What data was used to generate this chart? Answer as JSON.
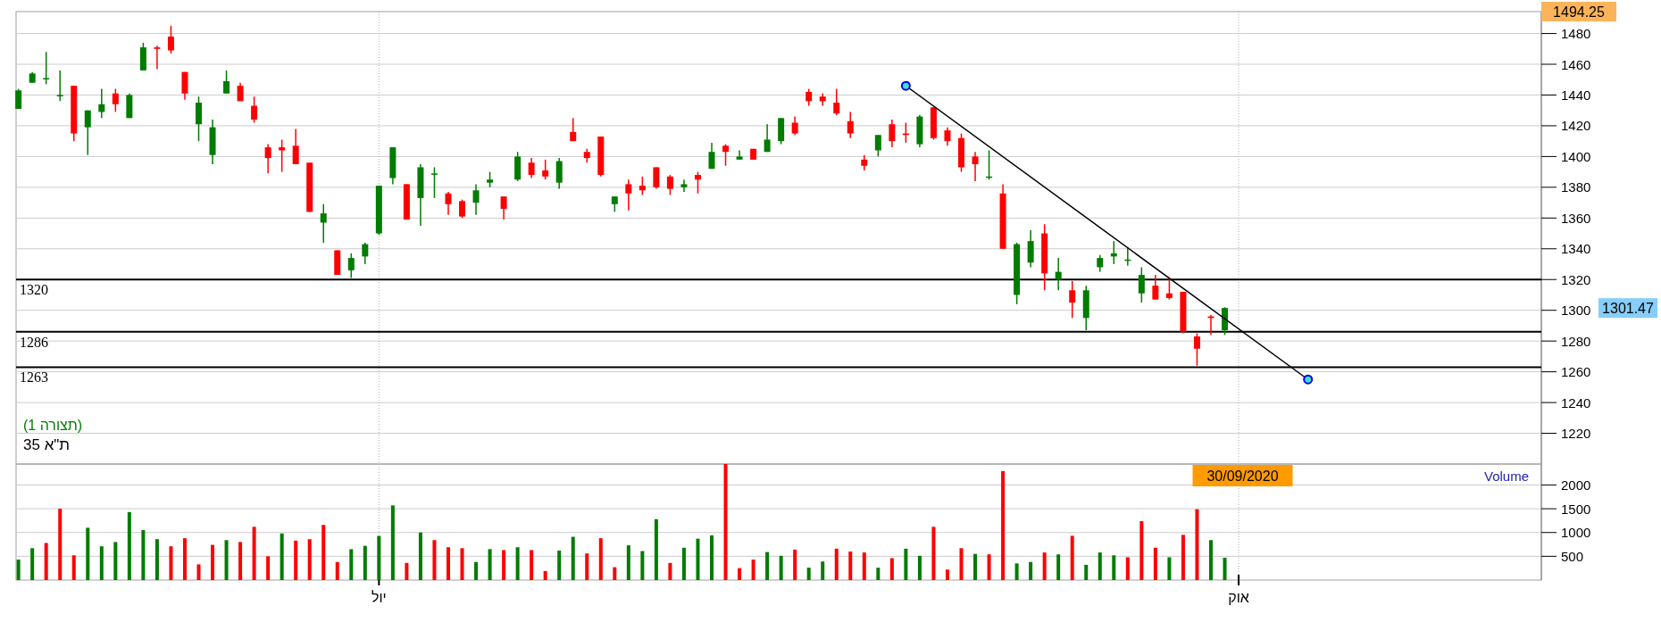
{
  "chart_data": [
    {
      "type": "candlestick",
      "title": "ת\"א 35",
      "subtitle": "(תצורה 1)",
      "categories": [
        null,
        null,
        null,
        null,
        null,
        null,
        null,
        null,
        null,
        null,
        null,
        null,
        null,
        null,
        null,
        null,
        null,
        null,
        null,
        null,
        null,
        null,
        null,
        null,
        null,
        null,
        null,
        null,
        null,
        null,
        null,
        null,
        null,
        null,
        null,
        null,
        null,
        null,
        null,
        null,
        null,
        null,
        null,
        null,
        null,
        null,
        null,
        null,
        null,
        null,
        null,
        null,
        null,
        null,
        null,
        null,
        null,
        null,
        null,
        null,
        null,
        null,
        null,
        null,
        null,
        null,
        null,
        null,
        null,
        null,
        null,
        null,
        null,
        null,
        null,
        null,
        null,
        null,
        null,
        null,
        null,
        null,
        null,
        null,
        null,
        null,
        null,
        null,
        null,
        null,
        null,
        null,
        null,
        null,
        null,
        null,
        null,
        null,
        null,
        null,
        null,
        null,
        null,
        null,
        null,
        null,
        null,
        null,
        null,
        null
      ],
      "ohlc": [
        [
          1431,
          1444,
          1431,
          1443
        ],
        [
          1448,
          1455,
          1448,
          1454
        ],
        [
          1451,
          1468,
          1447,
          1451
        ],
        [
          1440,
          1456,
          1436,
          1440
        ],
        [
          1446,
          1446,
          1410,
          1415
        ],
        [
          1419,
          1430,
          1401,
          1430
        ],
        [
          1429,
          1444,
          1425,
          1434
        ],
        [
          1441,
          1444,
          1429,
          1434
        ],
        [
          1425,
          1441,
          1425,
          1440
        ],
        [
          1456,
          1474,
          1456,
          1471
        ],
        [
          1471,
          1472,
          1457,
          1470
        ],
        [
          1478,
          1485,
          1467,
          1469
        ],
        [
          1455,
          1455,
          1437,
          1441
        ],
        [
          1421,
          1439,
          1410,
          1435
        ],
        [
          1401,
          1424,
          1395,
          1419
        ],
        [
          1441,
          1456,
          1441,
          1449
        ],
        [
          1446,
          1448,
          1436,
          1436
        ],
        [
          1433,
          1439,
          1422,
          1424
        ],
        [
          1406,
          1408,
          1389,
          1399
        ],
        [
          1406,
          1411,
          1390,
          1404
        ],
        [
          1407,
          1418,
          1395,
          1395
        ],
        [
          1396,
          1396,
          1364,
          1364
        ],
        [
          1357,
          1369,
          1344,
          1363
        ],
        [
          1339,
          1339,
          1323,
          1323
        ],
        [
          1326,
          1337,
          1321,
          1334
        ],
        [
          1335,
          1344,
          1330,
          1343
        ],
        [
          1350,
          1381,
          1349,
          1381
        ],
        [
          1386,
          1406,
          1382,
          1406
        ],
        [
          1382,
          1382,
          1359,
          1359
        ],
        [
          1373,
          1395,
          1355,
          1393
        ],
        [
          1389,
          1393,
          1373,
          1389
        ],
        [
          1376,
          1377,
          1362,
          1369
        ],
        [
          1371,
          1372,
          1360,
          1361
        ],
        [
          1370,
          1382,
          1362,
          1378
        ],
        [
          1383,
          1390,
          1380,
          1385
        ],
        [
          1374,
          1374,
          1359,
          1366
        ],
        [
          1385,
          1403,
          1384,
          1400
        ],
        [
          1396,
          1399,
          1386,
          1388
        ],
        [
          1391,
          1398,
          1385,
          1387
        ],
        [
          1383,
          1399,
          1379,
          1397
        ],
        [
          1416,
          1425,
          1410,
          1410
        ],
        [
          1403,
          1405,
          1396,
          1399
        ],
        [
          1413,
          1413,
          1387,
          1388
        ],
        [
          1369,
          1374,
          1364,
          1374
        ],
        [
          1382,
          1385,
          1365,
          1376
        ],
        [
          1381,
          1387,
          1375,
          1378
        ],
        [
          1393,
          1393,
          1379,
          1380
        ],
        [
          1387,
          1388,
          1375,
          1379
        ],
        [
          1380,
          1385,
          1377,
          1382
        ],
        [
          1388,
          1390,
          1376,
          1385
        ],
        [
          1392,
          1409,
          1392,
          1403
        ],
        [
          1407,
          1408,
          1394,
          1403
        ],
        [
          1398,
          1404,
          1398,
          1400
        ],
        [
          1405,
          1405,
          1398,
          1398
        ],
        [
          1403,
          1421,
          1403,
          1411
        ],
        [
          1410,
          1425,
          1408,
          1425
        ],
        [
          1422,
          1426,
          1414,
          1415
        ],
        [
          1442,
          1444,
          1433,
          1436
        ],
        [
          1439,
          1441,
          1433,
          1436
        ],
        [
          1435,
          1444,
          1427,
          1428
        ],
        [
          1423,
          1429,
          1412,
          1415
        ],
        [
          1398,
          1401,
          1391,
          1394
        ],
        [
          1404,
          1414,
          1400,
          1414
        ],
        [
          1421,
          1424,
          1406,
          1410
        ],
        [
          1415,
          1422,
          1409,
          1414
        ],
        [
          1408,
          1427,
          1406,
          1426
        ],
        [
          1432,
          1432,
          1411,
          1412
        ],
        [
          1417,
          1419,
          1407,
          1410
        ],
        [
          1412,
          1415,
          1390,
          1393
        ],
        [
          1400,
          1403,
          1384,
          1395
        ],
        [
          1387,
          1404,
          1385,
          1387
        ],
        [
          1376,
          1382,
          1340,
          1340
        ],
        [
          1310,
          1344,
          1304,
          1343
        ],
        [
          1331,
          1352,
          1328,
          1345
        ],
        [
          1350,
          1356,
          1313,
          1324
        ],
        [
          1320,
          1334,
          1313,
          1325
        ],
        [
          1313,
          1319,
          1295,
          1305
        ],
        [
          1295,
          1316,
          1287,
          1313
        ],
        [
          1328,
          1336,
          1325,
          1334
        ],
        [
          1335,
          1345,
          1330,
          1337
        ],
        [
          1333,
          1341,
          1329,
          1333
        ],
        [
          1311,
          1328,
          1305,
          1323
        ],
        [
          1316,
          1323,
          1307,
          1307
        ],
        [
          1311,
          1321,
          1307,
          1308
        ],
        [
          1312,
          1312,
          1285,
          1286
        ],
        [
          1283,
          1285,
          1264,
          1275
        ],
        [
          1296,
          1297,
          1284,
          1295
        ],
        [
          1287,
          1302,
          1284,
          1301.47
        ],
        null,
        null,
        null,
        null,
        null,
        null,
        null,
        null,
        null,
        null,
        null,
        null,
        null,
        null,
        null,
        null,
        null,
        null,
        null,
        null,
        null,
        null
      ],
      "colors": [
        "#007c00",
        "#007c00",
        "#007c00",
        "#007c00",
        "#ff0000",
        "#007c00",
        "#007c00",
        "#ff0000",
        "#007c00",
        "#007c00",
        "#ff0000",
        "#ff0000",
        "#ff0000",
        "#007c00",
        "#007c00",
        "#007c00",
        "#ff0000",
        "#ff0000",
        "#ff0000",
        "#ff0000",
        "#ff0000",
        "#ff0000",
        "#007c00",
        "#ff0000",
        "#007c00",
        "#007c00",
        "#007c00",
        "#007c00",
        "#ff0000",
        "#007c00",
        "#007c00",
        "#ff0000",
        "#ff0000",
        "#007c00",
        "#007c00",
        "#ff0000",
        "#007c00",
        "#ff0000",
        "#ff0000",
        "#007c00",
        "#ff0000",
        "#ff0000",
        "#ff0000",
        "#007c00",
        "#ff0000",
        "#ff0000",
        "#ff0000",
        "#ff0000",
        "#007c00",
        "#ff0000",
        "#007c00",
        "#ff0000",
        "#007c00",
        "#ff0000",
        "#007c00",
        "#007c00",
        "#ff0000",
        "#ff0000",
        "#ff0000",
        "#ff0000",
        "#ff0000",
        "#ff0000",
        "#007c00",
        "#ff0000",
        "#ff0000",
        "#007c00",
        "#ff0000",
        "#ff0000",
        "#ff0000",
        "#ff0000",
        "#007c00",
        "#ff0000",
        "#007c00",
        "#007c00",
        "#ff0000",
        "#007c00",
        "#ff0000",
        "#007c00",
        "#007c00",
        "#007c00",
        "#007c00",
        "#007c00",
        "#ff0000",
        "#ff0000",
        "#ff0000",
        "#ff0000",
        "#ff0000",
        "#007c00",
        null,
        null,
        null,
        null,
        null,
        null,
        null,
        null,
        null,
        null,
        null,
        null,
        null,
        null,
        null,
        null,
        null,
        null,
        null,
        null,
        null,
        null
      ],
      "series": [
        {
          "type": "line",
          "color": "#000000",
          "marker": "circle",
          "values": [
            null,
            null,
            null,
            null,
            null,
            null,
            null,
            null,
            null,
            null,
            null,
            null,
            null,
            null,
            null,
            null,
            null,
            null,
            null,
            null,
            null,
            null,
            null,
            null,
            null,
            null,
            null,
            null,
            null,
            null,
            null,
            null,
            null,
            null,
            null,
            null,
            null,
            null,
            null,
            null,
            null,
            null,
            null,
            null,
            null,
            null,
            null,
            null,
            null,
            null,
            null,
            null,
            null,
            null,
            null,
            null,
            null,
            null,
            null,
            null,
            null,
            null,
            null,
            null,
            1446,
            null,
            null,
            null,
            null,
            null,
            null,
            null,
            null,
            null,
            null,
            null,
            null,
            null,
            null,
            null,
            null,
            null,
            null,
            null,
            null,
            null,
            null,
            null,
            null,
            null,
            null,
            null,
            null,
            1255,
            null,
            null,
            null,
            null,
            null,
            null,
            null,
            null,
            null,
            null,
            null,
            null,
            null,
            null,
            null,
            null
          ]
        }
      ],
      "ylim": [
        1200,
        1494.25
      ],
      "yticks": [
        1220,
        1240,
        1260,
        1280,
        1300,
        1320,
        1340,
        1360,
        1380,
        1400,
        1420,
        1440,
        1460,
        1480
      ],
      "ref_lines": [
        {
          "axis": "y",
          "value": 1320,
          "label": "1320",
          "color": "#000000"
        },
        {
          "axis": "y",
          "value": 1286,
          "label": "1286",
          "color": "#000000"
        },
        {
          "axis": "y",
          "value": 1263,
          "label": "1263",
          "color": "#000000"
        }
      ],
      "annotations": [
        "1494.25",
        "1301.47"
      ],
      "grid": true,
      "tick_labels": "y"
    },
    {
      "type": "bar",
      "title": "Volume",
      "categories": [
        null,
        null,
        null,
        null,
        null,
        null,
        null,
        null,
        null,
        null,
        null,
        null,
        null,
        null,
        null,
        null,
        null,
        null,
        null,
        null,
        null,
        null,
        null,
        null,
        null,
        null,
        "יול",
        null,
        null,
        null,
        null,
        null,
        null,
        null,
        null,
        null,
        null,
        null,
        null,
        null,
        null,
        null,
        null,
        null,
        null,
        null,
        null,
        null,
        null,
        null,
        null,
        null,
        null,
        null,
        null,
        null,
        null,
        null,
        null,
        null,
        null,
        null,
        null,
        null,
        null,
        null,
        null,
        null,
        null,
        null,
        null,
        null,
        null,
        null,
        null,
        null,
        null,
        null,
        null,
        null,
        null,
        null,
        null,
        null,
        null,
        null,
        null,
        null,
        "אוק",
        null,
        null,
        null,
        null,
        null,
        null,
        null,
        null,
        null,
        null,
        null,
        null,
        null,
        null,
        null,
        null,
        null,
        null,
        null,
        null,
        null
      ],
      "values": [
        430,
        670,
        780,
        1500,
        520,
        1100,
        710,
        800,
        1430,
        1050,
        860,
        710,
        880,
        330,
        740,
        840,
        800,
        1120,
        500,
        980,
        830,
        860,
        1160,
        380,
        650,
        720,
        930,
        1570,
        360,
        1000,
        840,
        690,
        670,
        380,
        650,
        630,
        690,
        630,
        190,
        620,
        910,
        560,
        880,
        270,
        730,
        610,
        1280,
        360,
        680,
        870,
        940,
        2440,
        250,
        430,
        590,
        510,
        640,
        260,
        390,
        660,
        600,
        580,
        260,
        460,
        660,
        510,
        1120,
        220,
        670,
        550,
        540,
        2290,
        350,
        380,
        580,
        540,
        930,
        320,
        580,
        520,
        480,
        1240,
        680,
        480,
        950,
        1490,
        840,
        470,
        null,
        null,
        null,
        null,
        null,
        null,
        null,
        null,
        null,
        null,
        null,
        null,
        null,
        null,
        null,
        null,
        null,
        null,
        null,
        null,
        null,
        null
      ],
      "colors": [
        "#007c00",
        "#007c00",
        "#ff0000",
        "#ff0000",
        "#ff0000",
        "#007c00",
        "#007c00",
        "#007c00",
        "#007c00",
        "#007c00",
        "#007c00",
        "#ff0000",
        "#ff0000",
        "#ff0000",
        "#ff0000",
        "#007c00",
        "#ff0000",
        "#ff0000",
        "#ff0000",
        "#007c00",
        "#ff0000",
        "#ff0000",
        "#ff0000",
        "#ff0000",
        "#007c00",
        "#007c00",
        "#007c00",
        "#007c00",
        "#ff0000",
        "#007c00",
        "#ff0000",
        "#ff0000",
        "#ff0000",
        "#007c00",
        "#007c00",
        "#ff0000",
        "#007c00",
        "#ff0000",
        "#ff0000",
        "#007c00",
        "#007c00",
        "#ff0000",
        "#ff0000",
        "#ff0000",
        "#007c00",
        "#007c00",
        "#007c00",
        "#ff0000",
        "#007c00",
        "#007c00",
        "#007c00",
        "#ff0000",
        "#ff0000",
        "#ff0000",
        "#007c00",
        "#007c00",
        "#ff0000",
        "#007c00",
        "#007c00",
        "#ff0000",
        "#ff0000",
        "#ff0000",
        "#007c00",
        "#ff0000",
        "#007c00",
        "#007c00",
        "#ff0000",
        "#ff0000",
        "#ff0000",
        "#007c00",
        "#ff0000",
        "#ff0000",
        "#007c00",
        "#007c00",
        "#ff0000",
        "#007c00",
        "#ff0000",
        "#007c00",
        "#007c00",
        "#007c00",
        "#ff0000",
        "#ff0000",
        "#ff0000",
        "#007c00",
        "#ff0000",
        "#ff0000",
        "#007c00",
        "#007c00",
        null,
        null,
        null,
        null,
        null,
        null,
        null,
        null,
        null,
        null,
        null,
        null,
        null,
        null,
        null,
        null,
        null,
        null,
        null,
        null,
        null,
        null
      ],
      "ylim": [
        0,
        2440
      ],
      "yticks": [
        500,
        1000,
        1500,
        2000
      ],
      "annotations": [
        "30/09/2020"
      ],
      "grid": true
    }
  ]
}
